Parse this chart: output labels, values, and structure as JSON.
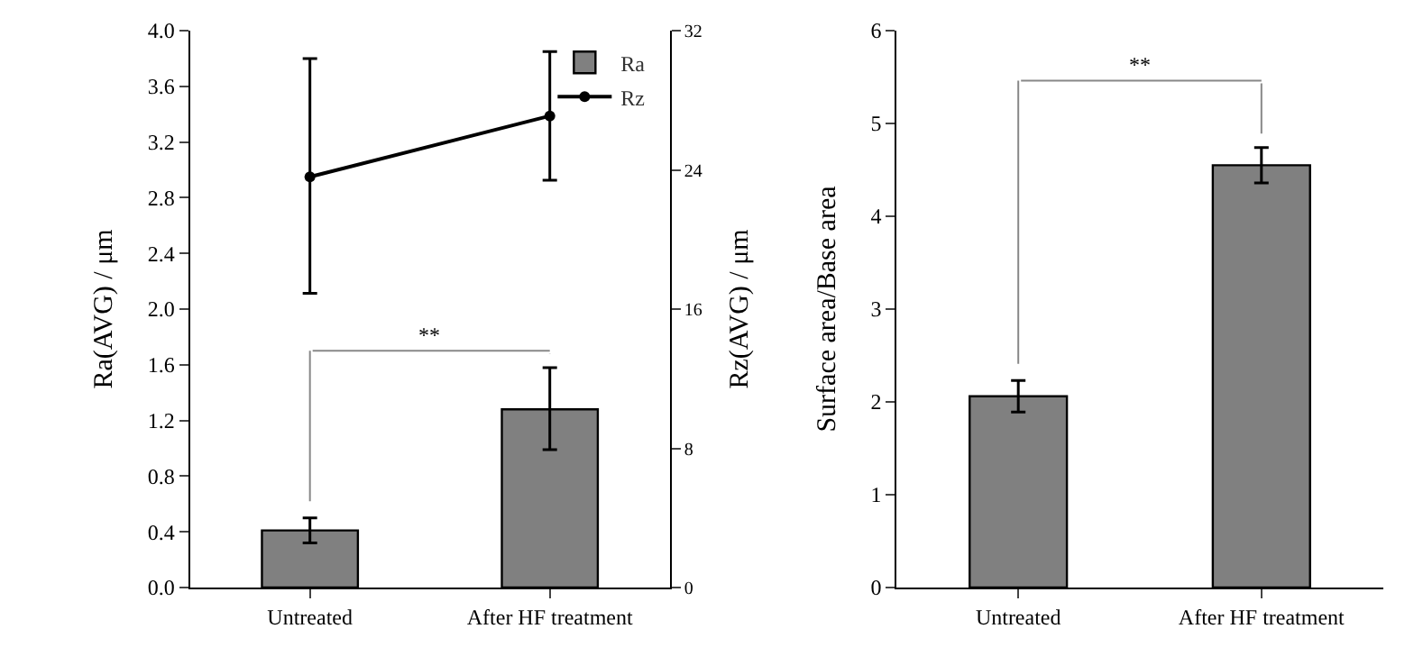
{
  "chart_data": [
    {
      "type": "bar",
      "categories": [
        "Untreated",
        "After HF treatment"
      ],
      "ylabel": "Ra(AVG) / μm",
      "y2label": "Rz(AVG) / μm",
      "ylim": [
        0,
        4.0
      ],
      "yticks": [
        {
          "value": 0,
          "label": "0.0"
        },
        0.4,
        0.8,
        1.2,
        1.6,
        {
          "value": 2.0,
          "label": "2.0"
        },
        2.4,
        2.8,
        3.2,
        3.6,
        {
          "value": 4.0,
          "label": "4.0"
        }
      ],
      "y2lim": [
        0,
        32
      ],
      "y2ticks": [
        0,
        8,
        16,
        24,
        32
      ],
      "series": [
        {
          "name": "Ra",
          "color": "#808080",
          "values": [
            0.41,
            1.28
          ],
          "errors": [
            [
              0.32,
              0.5
            ],
            [
              0.99,
              1.58
            ]
          ]
        },
        {
          "name": "Rz",
          "type": "line",
          "axis": "y2",
          "color": "#000000",
          "marker": "circle",
          "values": [
            23.6,
            27.1
          ],
          "errors": [
            [
              16.9,
              30.4
            ],
            [
              23.4,
              30.8
            ]
          ]
        }
      ],
      "annotations": [
        "**"
      ],
      "legend": "top right"
    },
    {
      "type": "bar",
      "categories": [
        "Untreated",
        "After HF treatment"
      ],
      "ylabel": "Surface area/Base area",
      "ylim": [
        0,
        6
      ],
      "yticks": [
        0,
        1,
        2,
        3,
        4,
        5,
        6
      ],
      "series": [
        {
          "color": "#808080",
          "values": [
            2.06,
            4.55
          ],
          "errors": [
            [
              1.89,
              2.23
            ],
            [
              4.36,
              4.74
            ]
          ]
        }
      ],
      "annotations": [
        "**"
      ],
      "legend": false
    }
  ]
}
